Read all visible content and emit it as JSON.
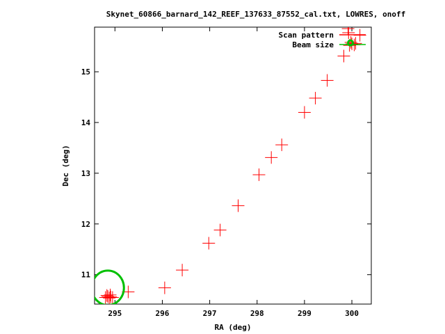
{
  "chart_data": {
    "type": "scatter",
    "title": "Skynet_60866_barnard_142_REEF_137633_87552_cal.txt, LOWRES, onoff",
    "xlabel": "RA (deg)",
    "ylabel": "Dec (deg)",
    "xlim": [
      294.57,
      300.41
    ],
    "ylim": [
      10.42,
      15.88
    ],
    "x_ticks": [
      295,
      296,
      297,
      298,
      299,
      300
    ],
    "y_ticks": [
      11,
      12,
      13,
      14,
      15
    ],
    "grid": false,
    "legend_position": "top-right",
    "legend": [
      {
        "label": "Scan pattern",
        "color": "#ff0000"
      },
      {
        "label": "Beam size",
        "color": "#00c000"
      }
    ],
    "series": [
      {
        "name": "Scan pattern",
        "color": "#ff0000",
        "marker": "plus",
        "points": [
          [
            294.8,
            10.55
          ],
          [
            294.85,
            10.57
          ],
          [
            294.88,
            10.54
          ],
          [
            294.91,
            10.56
          ],
          [
            294.95,
            10.55
          ],
          [
            294.83,
            10.59
          ],
          [
            294.9,
            10.6
          ],
          [
            295.28,
            10.66
          ],
          [
            296.05,
            10.74
          ],
          [
            296.42,
            11.09
          ],
          [
            296.98,
            11.62
          ],
          [
            297.22,
            11.88
          ],
          [
            297.6,
            12.36
          ],
          [
            298.04,
            12.97
          ],
          [
            298.3,
            13.31
          ],
          [
            298.52,
            13.56
          ],
          [
            299.0,
            14.2
          ],
          [
            299.23,
            14.48
          ],
          [
            299.48,
            14.83
          ],
          [
            299.83,
            15.31
          ],
          [
            299.95,
            15.52
          ],
          [
            300.0,
            15.55
          ],
          [
            300.05,
            15.53
          ],
          [
            300.08,
            15.56
          ],
          [
            299.98,
            15.58
          ],
          [
            299.93,
            15.77
          ],
          [
            300.17,
            15.72
          ],
          [
            299.92,
            15.85
          ]
        ]
      },
      {
        "name": "Beam size",
        "color": "#00c000",
        "type": "circle",
        "circles": [
          {
            "center": [
              294.85,
              10.74
            ],
            "radius_deg": 0.34
          },
          {
            "center": [
              299.97,
              15.57
            ],
            "radius_deg": 0.05
          }
        ]
      }
    ]
  }
}
